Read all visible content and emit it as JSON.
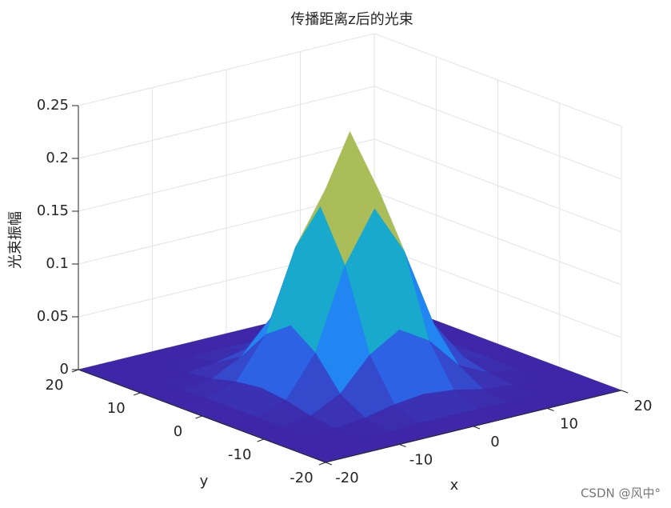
{
  "chart_data": {
    "type": "surface",
    "title": "传播距离z后的光束",
    "xlabel": "x",
    "ylabel": "y",
    "zlabel": "光束振幅",
    "x": [
      -20,
      -16,
      -12,
      -8,
      -4,
      0,
      4,
      8,
      12,
      16,
      20
    ],
    "y": [
      -20,
      -16,
      -12,
      -8,
      -4,
      0,
      4,
      8,
      12,
      16,
      20
    ],
    "z": [
      [
        0,
        0,
        0,
        0,
        0,
        0,
        0,
        0,
        0,
        0,
        0
      ],
      [
        0,
        0,
        0,
        0,
        0.001,
        0.001,
        0.001,
        0,
        0,
        0,
        0
      ],
      [
        0,
        0,
        0.001,
        0.004,
        0.01,
        0.013,
        0.01,
        0.004,
        0.001,
        0,
        0
      ],
      [
        0,
        0,
        0.004,
        0.018,
        0.048,
        0.065,
        0.048,
        0.018,
        0.004,
        0,
        0
      ],
      [
        0,
        0.001,
        0.01,
        0.048,
        0.124,
        0.171,
        0.124,
        0.048,
        0.01,
        0.001,
        0
      ],
      [
        0,
        0.001,
        0.013,
        0.065,
        0.171,
        0.235,
        0.171,
        0.065,
        0.013,
        0.001,
        0
      ],
      [
        0,
        0.001,
        0.01,
        0.048,
        0.124,
        0.171,
        0.124,
        0.048,
        0.01,
        0.001,
        0
      ],
      [
        0,
        0,
        0.004,
        0.018,
        0.048,
        0.065,
        0.048,
        0.018,
        0.004,
        0,
        0
      ],
      [
        0,
        0,
        0.001,
        0.004,
        0.01,
        0.013,
        0.01,
        0.004,
        0.001,
        0,
        0
      ],
      [
        0,
        0,
        0,
        0,
        0.001,
        0.001,
        0.001,
        0,
        0,
        0,
        0
      ],
      [
        0,
        0,
        0,
        0,
        0,
        0,
        0,
        0,
        0,
        0,
        0
      ]
    ],
    "xlim": [
      -20,
      20
    ],
    "ylim": [
      -20,
      20
    ],
    "zlim": [
      0,
      0.25
    ],
    "xticks": [
      -20,
      -10,
      0,
      10,
      20
    ],
    "yticks": [
      -20,
      -10,
      0,
      10,
      20
    ],
    "zticks": [
      0,
      0.05,
      0.1,
      0.15,
      0.2,
      0.25
    ],
    "colormap": "parula",
    "grid": true
  },
  "watermark": "CSDN @风中°"
}
